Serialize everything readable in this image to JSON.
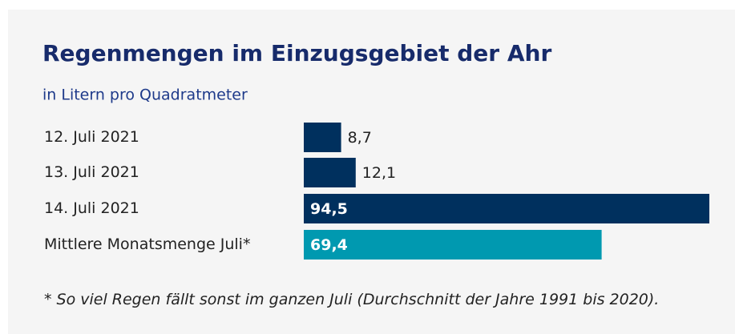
{
  "chart_data": {
    "type": "bar",
    "orientation": "horizontal",
    "title": "Regenmengen im Einzugsgebiet der Ahr",
    "subtitle": "in Litern pro Quadratmeter",
    "categories": [
      "12. Juli 2021",
      "13. Juli 2021",
      "14. Juli 2021",
      "Mittlere Monatsmenge Juli*"
    ],
    "values": [
      8.7,
      12.1,
      94.5,
      69.4
    ],
    "value_labels": [
      "8,7",
      "12,1",
      "94,5",
      "69,4"
    ],
    "colors": [
      "#00305e",
      "#00305e",
      "#00305e",
      "#0099b0"
    ],
    "footnote": "* So viel Regen fällt sonst im ganzen Juli (Durchschnitt der Jahre 1991 bis 2020)."
  }
}
